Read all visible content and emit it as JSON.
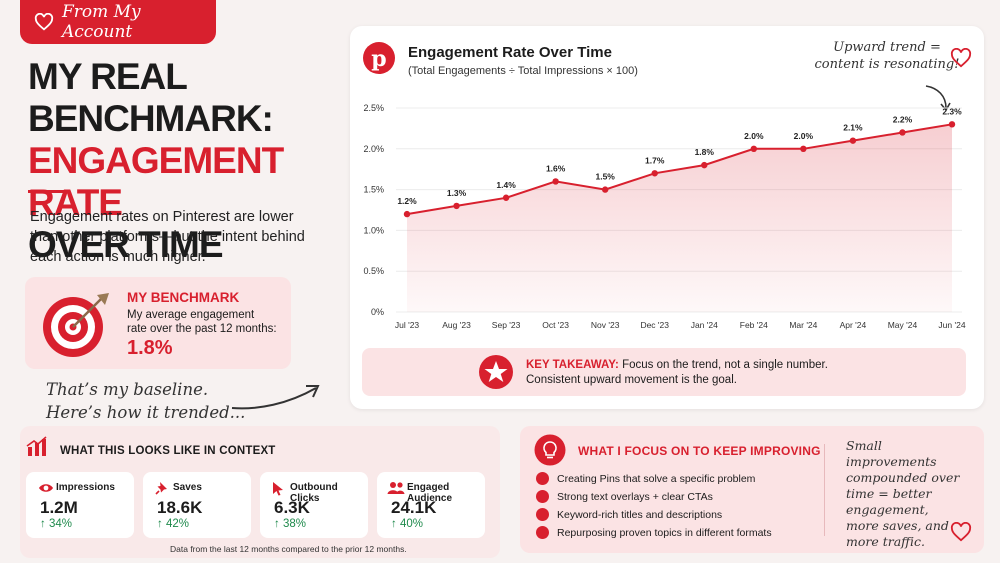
{
  "tag": {
    "text": "From My Account"
  },
  "headline": {
    "line1": "MY REAL BENCHMARK:",
    "line2": "ENGAGEMENT RATE",
    "line3": "OVER TIME"
  },
  "intro": "Engagement rates on Pinterest are lower than other platforms—but the intent behind each action is much higher.",
  "benchmark": {
    "title": "MY BENCHMARK",
    "description": "My average engagement rate over the past 12 months:",
    "value": "1.8%"
  },
  "note_baseline": {
    "line1": "That’s my baseline.",
    "line2": "Here’s how it trended..."
  },
  "chart_card": {
    "note_line1": "Upward trend =",
    "note_line2": "content is resonating!",
    "takeaway_label": "KEY TAKEAWAY:",
    "takeaway_text": "Focus on the trend, not a single number.",
    "takeaway_text2": "Consistent upward movement is the goal."
  },
  "chart_data": {
    "type": "line",
    "title": "Engagement Rate Over Time",
    "subtitle": "(Total Engagements ÷ Total Impressions × 100)",
    "categories": [
      "Jul '23",
      "Aug '23",
      "Sep '23",
      "Oct '23",
      "Nov '23",
      "Dec '23",
      "Jan '24",
      "Feb '24",
      "Mar '24",
      "Apr '24",
      "May '24",
      "Jun '24"
    ],
    "values": [
      1.2,
      1.3,
      1.4,
      1.6,
      1.5,
      1.7,
      1.8,
      2.0,
      2.0,
      2.1,
      2.2,
      2.3
    ],
    "data_labels": [
      "1.2%",
      "1.3%",
      "1.4%",
      "1.6%",
      "1.5%",
      "1.7%",
      "1.8%",
      "2.0%",
      "2.0%",
      "2.1%",
      "2.2%",
      "2.3%"
    ],
    "y_ticks": [
      0,
      0.5,
      1.0,
      1.5,
      2.0,
      2.5
    ],
    "y_tick_labels": [
      "0%",
      "0.5%",
      "1.0%",
      "1.5%",
      "2.0%",
      "2.5%"
    ],
    "ylim": [
      0,
      2.5
    ],
    "grid": "horizontal",
    "xlabel": "",
    "ylabel": "",
    "line_color": "#d8202e"
  },
  "context": {
    "title": "WHAT THIS LOOKS LIKE IN CONTEXT",
    "metrics": [
      {
        "icon": "eye-icon",
        "label": "Impressions",
        "value": "1.2M",
        "change": "↑ 34%"
      },
      {
        "icon": "pin-icon",
        "label": "Saves",
        "value": "18.6K",
        "change": "↑ 42%"
      },
      {
        "icon": "cursor-icon",
        "label": "Outbound Clicks",
        "value": "6.3K",
        "change": "↑ 38%"
      },
      {
        "icon": "users-icon",
        "label": "Engaged Audience",
        "value": "24.1K",
        "change": "↑ 40%"
      }
    ],
    "footnote": "Data from the last 12 months compared to the prior 12 months."
  },
  "focus": {
    "title": "WHAT I FOCUS ON TO KEEP IMPROVING",
    "items": [
      "Creating Pins that solve a specific problem",
      "Strong text overlays + clear CTAs",
      "Keyword-rich titles and descriptions",
      "Repurposing proven topics in different formats"
    ],
    "note_lines": [
      "Small improvements",
      "compounded over",
      "time = better",
      "engagement,",
      "more saves, and",
      "more traffic."
    ]
  },
  "colors": {
    "accent": "#d8202e",
    "positive": "#1f8a4c",
    "soft": "#fbe3e4"
  }
}
